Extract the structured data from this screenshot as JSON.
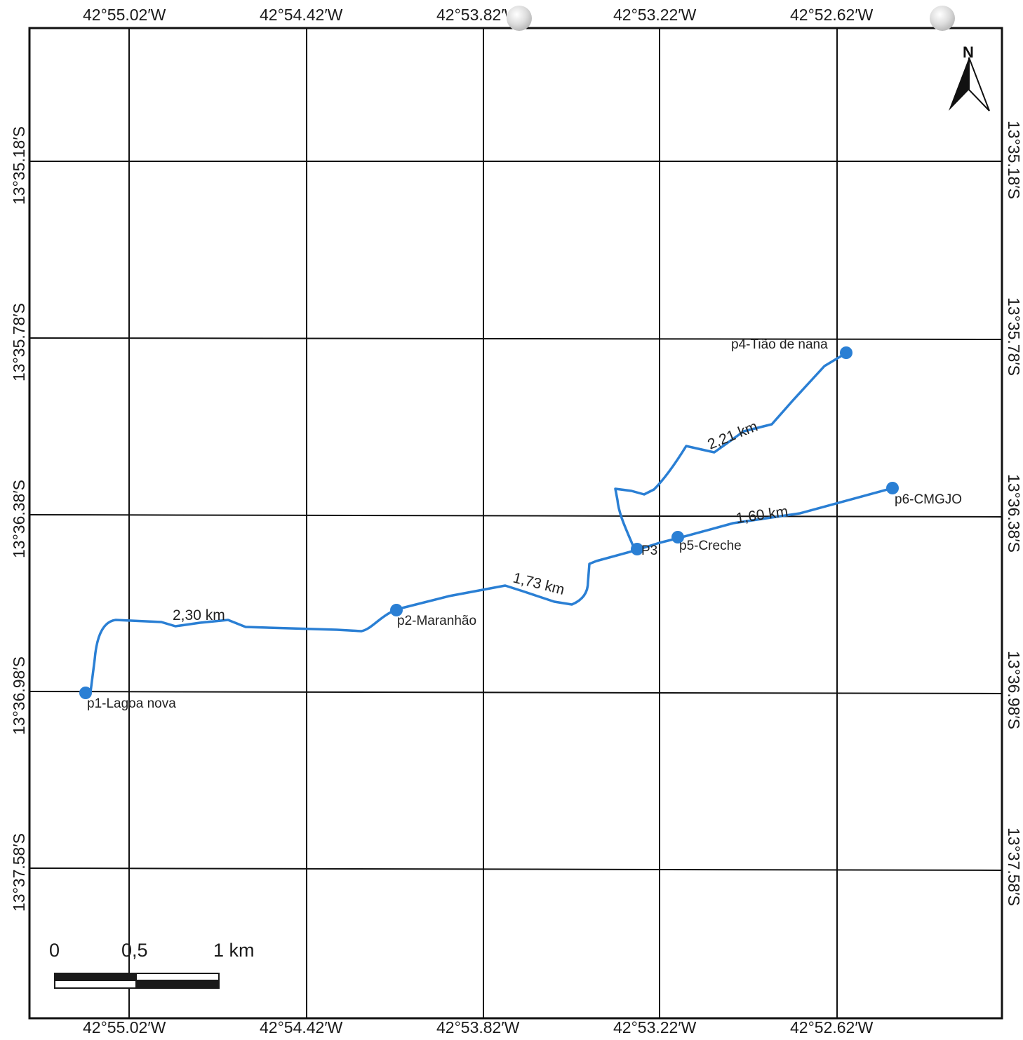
{
  "map": {
    "lon_labels": [
      "42°55.02′W",
      "42°54.42′W",
      "42°53.82′W",
      "42°53.22′W",
      "42°52.62′W"
    ],
    "lat_labels": [
      "13°35.18′S",
      "13°35.78′S",
      "13°36.38′S",
      "13°36.98′S",
      "13°37.58′S"
    ],
    "north_label": "N",
    "route_color": "#2a7fd4",
    "points": [
      {
        "id": "p1",
        "label": "p1-Lagoa nova"
      },
      {
        "id": "p2",
        "label": "p2-Maranhão"
      },
      {
        "id": "p3",
        "label": "P3"
      },
      {
        "id": "p4",
        "label": "p4-Tião de nana"
      },
      {
        "id": "p5",
        "label": "p5-Creche"
      },
      {
        "id": "p6",
        "label": "p6-CMGJO"
      }
    ],
    "segments": [
      {
        "from": "p1",
        "to": "p2",
        "distance": "2,30 km"
      },
      {
        "from": "p2",
        "to": "p3",
        "distance": "1,73 km"
      },
      {
        "from": "p3",
        "to": "p4",
        "distance": "2,21 km"
      },
      {
        "from": "p5",
        "to": "p6",
        "distance": "1,60 km"
      }
    ],
    "scale_bar": {
      "labels": [
        "0",
        "0,5",
        "1 km"
      ]
    }
  }
}
